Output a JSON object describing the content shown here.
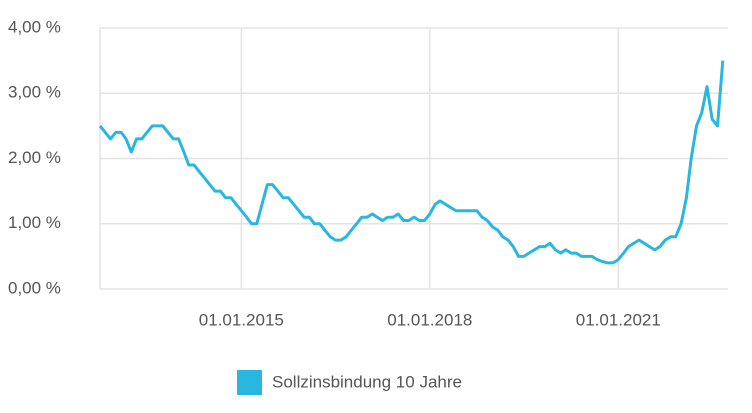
{
  "chart_data": {
    "type": "line",
    "x": [
      "01.10.2012",
      "01.11.2012",
      "01.12.2012",
      "01.01.2013",
      "01.02.2013",
      "01.03.2013",
      "01.04.2013",
      "01.05.2013",
      "01.06.2013",
      "01.07.2013",
      "01.08.2013",
      "01.09.2013",
      "01.10.2013",
      "01.11.2013",
      "01.12.2013",
      "01.01.2014",
      "01.02.2014",
      "01.03.2014",
      "01.04.2014",
      "01.05.2014",
      "01.06.2014",
      "01.07.2014",
      "01.08.2014",
      "01.09.2014",
      "01.10.2014",
      "01.11.2014",
      "01.12.2014",
      "01.01.2015",
      "01.02.2015",
      "01.03.2015",
      "01.04.2015",
      "01.05.2015",
      "01.06.2015",
      "01.07.2015",
      "01.08.2015",
      "01.09.2015",
      "01.10.2015",
      "01.11.2015",
      "01.12.2015",
      "01.01.2016",
      "01.02.2016",
      "01.03.2016",
      "01.04.2016",
      "01.05.2016",
      "01.06.2016",
      "01.07.2016",
      "01.08.2016",
      "01.09.2016",
      "01.10.2016",
      "01.11.2016",
      "01.12.2016",
      "01.01.2017",
      "01.02.2017",
      "01.03.2017",
      "01.04.2017",
      "01.05.2017",
      "01.06.2017",
      "01.07.2017",
      "01.08.2017",
      "01.09.2017",
      "01.10.2017",
      "01.11.2017",
      "01.12.2017",
      "01.01.2018",
      "01.02.2018",
      "01.03.2018",
      "01.04.2018",
      "01.05.2018",
      "01.06.2018",
      "01.07.2018",
      "01.08.2018",
      "01.09.2018",
      "01.10.2018",
      "01.11.2018",
      "01.12.2018",
      "01.01.2019",
      "01.02.2019",
      "01.03.2019",
      "01.04.2019",
      "01.05.2019",
      "01.06.2019",
      "01.07.2019",
      "01.08.2019",
      "01.09.2019",
      "01.10.2019",
      "01.11.2019",
      "01.12.2019",
      "01.01.2020",
      "01.02.2020",
      "01.03.2020",
      "01.04.2020",
      "01.05.2020",
      "01.06.2020",
      "01.07.2020",
      "01.08.2020",
      "01.09.2020",
      "01.10.2020",
      "01.11.2020",
      "01.12.2020",
      "01.01.2021",
      "01.02.2021",
      "01.03.2021",
      "01.04.2021",
      "01.05.2021",
      "01.06.2021",
      "01.07.2021",
      "01.08.2021",
      "01.09.2021",
      "01.10.2021",
      "01.11.2021",
      "01.12.2021",
      "01.01.2022",
      "01.02.2022",
      "01.03.2022",
      "01.04.2022",
      "01.05.2022",
      "01.06.2022",
      "01.07.2022",
      "01.08.2022",
      "01.09.2022"
    ],
    "series": [
      {
        "name": "Sollzinsbindung 10 Jahre",
        "color": "#29b6e0",
        "values": [
          2.5,
          2.4,
          2.3,
          2.4,
          2.4,
          2.3,
          2.1,
          2.3,
          2.3,
          2.4,
          2.5,
          2.5,
          2.5,
          2.4,
          2.3,
          2.3,
          2.1,
          1.9,
          1.9,
          1.8,
          1.7,
          1.6,
          1.5,
          1.5,
          1.4,
          1.4,
          1.3,
          1.2,
          1.1,
          1.0,
          1.0,
          1.3,
          1.6,
          1.6,
          1.5,
          1.4,
          1.4,
          1.3,
          1.2,
          1.1,
          1.1,
          1.0,
          1.0,
          0.9,
          0.8,
          0.75,
          0.75,
          0.8,
          0.9,
          1.0,
          1.1,
          1.1,
          1.15,
          1.1,
          1.05,
          1.1,
          1.1,
          1.15,
          1.05,
          1.05,
          1.1,
          1.05,
          1.05,
          1.15,
          1.3,
          1.35,
          1.3,
          1.25,
          1.2,
          1.2,
          1.2,
          1.2,
          1.2,
          1.1,
          1.05,
          0.95,
          0.9,
          0.8,
          0.75,
          0.65,
          0.5,
          0.5,
          0.55,
          0.6,
          0.65,
          0.65,
          0.7,
          0.6,
          0.55,
          0.6,
          0.55,
          0.55,
          0.5,
          0.5,
          0.5,
          0.45,
          0.42,
          0.4,
          0.4,
          0.45,
          0.55,
          0.65,
          0.7,
          0.75,
          0.7,
          0.65,
          0.6,
          0.65,
          0.75,
          0.8,
          0.8,
          1.0,
          1.4,
          2.0,
          2.5,
          2.7,
          3.1,
          2.6,
          2.5,
          3.5
        ]
      }
    ],
    "xlim": [
      "01.10.2012",
      "01.10.2022"
    ],
    "xticks": [
      "01.01.2015",
      "01.01.2018",
      "01.01.2021"
    ],
    "ylim": [
      0,
      4
    ],
    "yticks": [
      {
        "value": 0,
        "label": "0,00 %"
      },
      {
        "value": 1,
        "label": "1,00 %"
      },
      {
        "value": 2,
        "label": "2,00 %"
      },
      {
        "value": 3,
        "label": "3,00 %"
      },
      {
        "value": 4,
        "label": "4,00 %"
      }
    ],
    "grid": true,
    "legend": "bottom"
  }
}
